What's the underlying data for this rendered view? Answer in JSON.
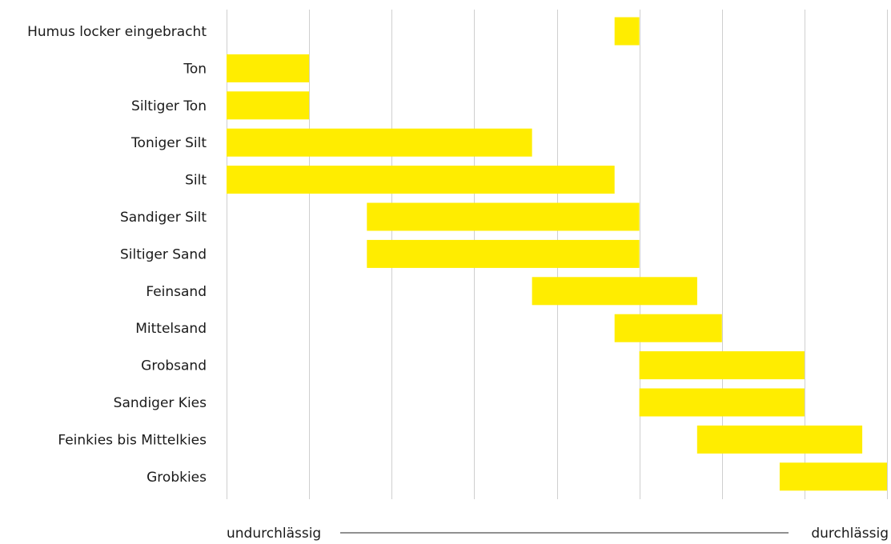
{
  "chart_data": {
    "type": "bar",
    "orientation": "horizontal-range",
    "categories": [
      "Humus locker eingebracht",
      "Ton",
      "Siltiger Ton",
      "Toniger Silt",
      "Silt",
      "Sandiger Silt",
      "Siltiger Sand",
      "Feinsand",
      "Mittelsand",
      "Grobsand",
      "Sandiger Kies",
      "Feinkies bis Mittelkies",
      "Grobkies"
    ],
    "ranges": [
      [
        4.7,
        5.0
      ],
      [
        0,
        1
      ],
      [
        0,
        1
      ],
      [
        0,
        3.7
      ],
      [
        0,
        4.7
      ],
      [
        1.7,
        5.0
      ],
      [
        1.7,
        5.0
      ],
      [
        3.7,
        5.7
      ],
      [
        4.7,
        6.0
      ],
      [
        5.0,
        7.0
      ],
      [
        5.0,
        7.0
      ],
      [
        5.7,
        7.7
      ],
      [
        6.7,
        8.0
      ]
    ],
    "xlim": [
      0,
      8
    ],
    "grid": true,
    "bar_color": "#FFED00",
    "axis": {
      "left_label": "undurchlässig",
      "right_label": "durchlässig"
    }
  }
}
